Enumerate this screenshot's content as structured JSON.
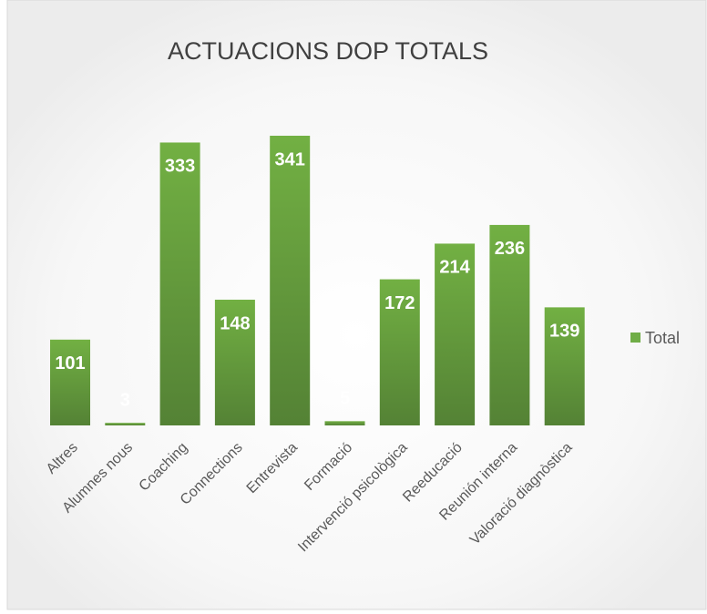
{
  "chart_data": {
    "type": "bar",
    "title": "ACTUACIONS DOP TOTALS",
    "categories": [
      "Altres",
      "Alumnes nous",
      "Coaching",
      "Connections",
      "Entrevista",
      "Formació",
      "Intervenció psicològica",
      "Reeducació",
      "Reunión interna",
      "Valoració diagnòstica"
    ],
    "series": [
      {
        "name": "Total",
        "color": "#70ad47",
        "values": [
          101,
          3,
          333,
          148,
          341,
          5,
          172,
          214,
          236,
          139
        ]
      }
    ],
    "data_labels": true,
    "legend": "right",
    "grid": false
  }
}
